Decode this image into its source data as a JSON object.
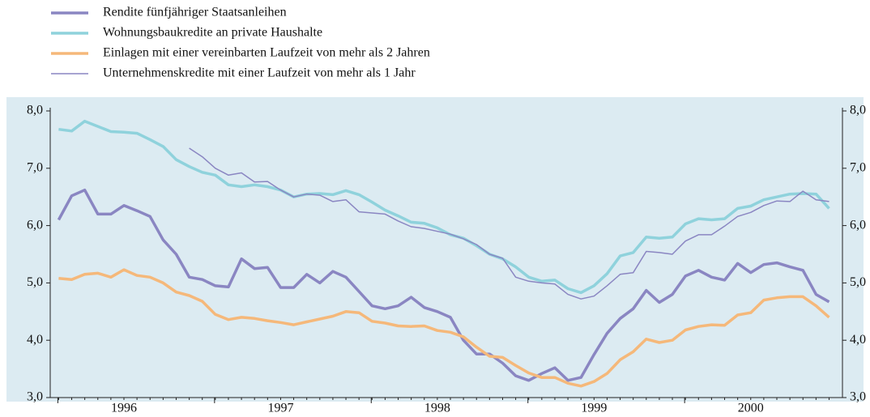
{
  "chart_data": {
    "type": "line",
    "categories": [
      null,
      null,
      null,
      null,
      null,
      "1996",
      null,
      null,
      null,
      null,
      null,
      null,
      null,
      null,
      null,
      null,
      null,
      "1997",
      null,
      null,
      null,
      null,
      null,
      null,
      null,
      null,
      null,
      null,
      null,
      "1998",
      null,
      null,
      null,
      null,
      null,
      null,
      null,
      null,
      null,
      null,
      null,
      "1999",
      null,
      null,
      null,
      null,
      null,
      null,
      null,
      null,
      null,
      null,
      null,
      "2000",
      null,
      null,
      null,
      null,
      null,
      null
    ],
    "series": [
      {
        "name": "Rendite fünfjähriger Staatsanleihen",
        "color": "#8a86c2",
        "width": 3.5,
        "values": [
          6.1,
          6.52,
          6.62,
          6.2,
          6.2,
          6.35,
          6.26,
          6.16,
          5.75,
          5.5,
          5.1,
          5.06,
          4.95,
          4.93,
          5.42,
          5.25,
          5.27,
          4.92,
          4.92,
          5.15,
          5.0,
          5.2,
          5.1,
          4.85,
          4.6,
          4.55,
          4.6,
          4.75,
          4.57,
          4.5,
          4.4,
          4.0,
          3.76,
          3.76,
          3.6,
          3.38,
          3.3,
          3.42,
          3.52,
          3.3,
          3.35,
          3.75,
          4.12,
          4.38,
          4.55,
          4.87,
          4.66,
          4.8,
          5.12,
          5.22,
          5.1,
          5.05,
          5.34,
          5.18,
          5.32,
          5.35,
          5.28,
          5.22,
          4.8,
          4.67
        ]
      },
      {
        "name": "Wohnungsbaukredite an private Haushalte",
        "color": "#8fd2dc",
        "width": 3.5,
        "values": [
          7.68,
          7.65,
          7.82,
          7.73,
          7.64,
          7.63,
          7.61,
          7.5,
          7.38,
          7.15,
          7.03,
          6.93,
          6.88,
          6.71,
          6.68,
          6.71,
          6.68,
          6.62,
          6.5,
          6.55,
          6.56,
          6.54,
          6.61,
          6.54,
          6.41,
          6.27,
          6.17,
          6.06,
          6.04,
          5.96,
          5.84,
          5.78,
          5.65,
          5.5,
          5.42,
          5.28,
          5.1,
          5.03,
          5.05,
          4.9,
          4.83,
          4.95,
          5.16,
          5.47,
          5.53,
          5.8,
          5.78,
          5.8,
          6.03,
          6.12,
          6.1,
          6.12,
          6.3,
          6.34,
          6.45,
          6.5,
          6.55,
          6.56,
          6.55,
          6.3
        ]
      },
      {
        "name": "Einlagen mit einer vereinbarten Laufzeit von mehr als 2 Jahren",
        "color": "#f5b87a",
        "width": 3.5,
        "values": [
          5.08,
          5.06,
          5.15,
          5.17,
          5.1,
          5.23,
          5.13,
          5.1,
          5.0,
          4.84,
          4.78,
          4.68,
          4.45,
          4.36,
          4.4,
          4.38,
          4.34,
          4.31,
          4.27,
          4.32,
          4.37,
          4.42,
          4.5,
          4.48,
          4.33,
          4.3,
          4.25,
          4.24,
          4.25,
          4.17,
          4.14,
          4.06,
          3.88,
          3.72,
          3.7,
          3.56,
          3.43,
          3.35,
          3.35,
          3.25,
          3.2,
          3.28,
          3.42,
          3.66,
          3.8,
          4.02,
          3.96,
          4.0,
          4.18,
          4.24,
          4.27,
          4.26,
          4.44,
          4.48,
          4.7,
          4.74,
          4.76,
          4.76,
          4.6,
          4.4
        ]
      },
      {
        "name": "Unternehmenskredite mit einer Laufzeit von mehr als 1 Jahr",
        "color": "#8a86c2",
        "width": 1.5,
        "values": [
          null,
          null,
          null,
          null,
          null,
          null,
          null,
          null,
          null,
          null,
          7.35,
          7.2,
          7.0,
          6.88,
          6.92,
          6.76,
          6.77,
          6.62,
          6.5,
          6.55,
          6.53,
          6.42,
          6.45,
          6.24,
          6.22,
          6.2,
          6.08,
          5.98,
          5.95,
          5.9,
          5.85,
          5.77,
          5.67,
          5.5,
          5.43,
          5.1,
          5.03,
          5.0,
          4.98,
          4.8,
          4.72,
          4.77,
          4.95,
          5.15,
          5.18,
          5.55,
          5.53,
          5.5,
          5.73,
          5.84,
          5.84,
          5.99,
          6.16,
          6.23,
          6.35,
          6.43,
          6.42,
          6.6,
          6.45,
          6.42
        ]
      }
    ],
    "ylim": [
      3,
      8
    ],
    "yticks": [
      {
        "value": 3,
        "label": "3,0"
      },
      {
        "value": 4,
        "label": "4,0"
      },
      {
        "value": 5,
        "label": "5,0"
      },
      {
        "value": 6,
        "label": "6,0"
      },
      {
        "value": 7,
        "label": "7,0"
      },
      {
        "value": 8,
        "label": "8,0"
      }
    ],
    "y2lim": [
      3,
      8
    ],
    "y2ticks": [
      {
        "value": 3,
        "label": "3,0"
      },
      {
        "value": 4,
        "label": "4,0"
      },
      {
        "value": 5,
        "label": "5,0"
      },
      {
        "value": 6,
        "label": "6,0"
      },
      {
        "value": 7,
        "label": "7,0"
      },
      {
        "value": 8,
        "label": "8,0"
      }
    ],
    "plot_background": "#dcebf2"
  }
}
